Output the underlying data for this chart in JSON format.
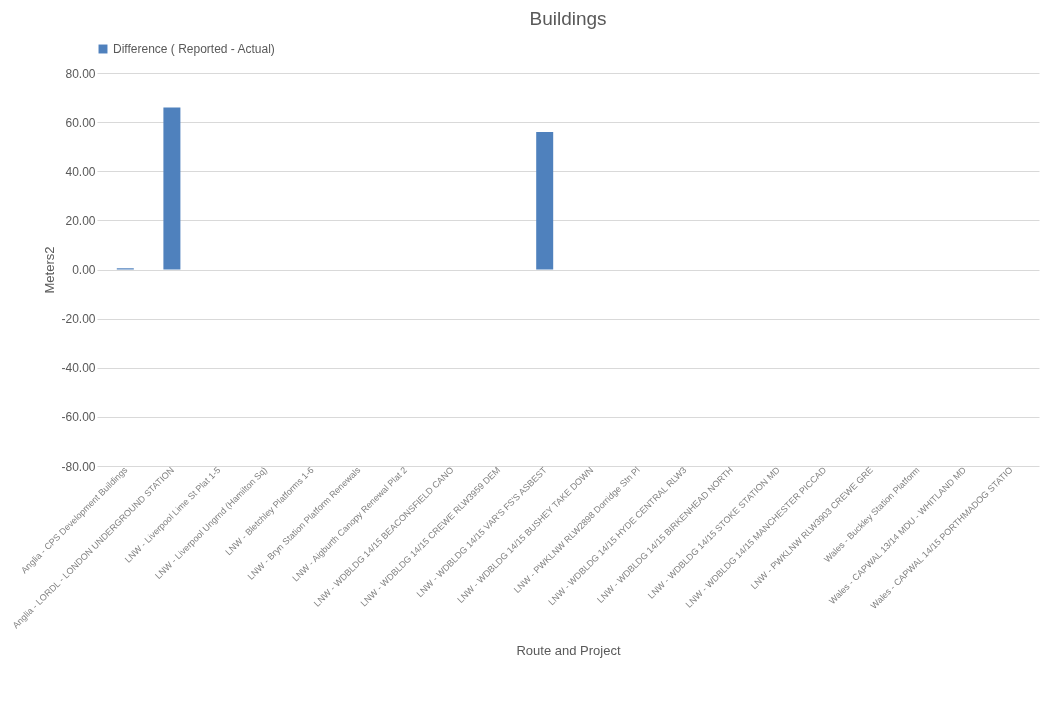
{
  "chart_data": {
    "type": "bar",
    "title": "Buildings",
    "xlabel": "Route and Project",
    "ylabel": "Meters2",
    "categories": [
      "Anglia - CPS Development Buildings",
      "Anglia - LORDL - LONDON UNDERGROUND STATION",
      "LNW - Liverpool Lime St Plat 1-5",
      "LNW - Liverpool Ungrnd (Hamilton Sq)",
      "LNW - Bletchley Platforms 1-6",
      "LNW - Bryn Station Platform Renewals",
      "LNW - Aigburth Canopy Renewal Plat 2",
      "LNW - WDBLDG 14/15 BEACONSFIELD CANO",
      "LNW - WDBLDG 14/15 CREWE RLW3959 DEM",
      "LNW - WDBLDG 14/15 VAR'S FS'S ASBEST",
      "LNW - WDBLDG 14/15 BUSHEY TAKE DOWN",
      "LNW - PWKLNW RLW2898 Dorridge Stn Pl",
      "LNW - WDBLDG 14/15 HYDE CENTRAL RLW3",
      "LNW - WDBLDG 14/15 BIRKENHEAD NORTH",
      "LNW - WDBLDG 14/15 STOKE STATION MD",
      "LNW - WDBLDG 14/15 MANCHESTER PICCAD",
      "LNW - PWKLNW RLW3903 CREWE GRE",
      "Wales - Buckley Station Platform",
      "Wales - CAPWAL 13/14 MDU - WHITLAND MD",
      "Wales - CAPWAL 14/15 PORTHMADOG STATIO"
    ],
    "series": [
      {
        "name": "Difference ( Reported - Actual)",
        "color": "#4f81bd",
        "values": [
          0.5,
          66,
          0,
          0,
          0,
          0,
          0,
          0,
          0,
          56,
          0,
          0,
          0,
          0,
          0,
          0,
          0,
          0,
          0,
          0
        ]
      }
    ],
    "ylim": [
      -80,
      80
    ],
    "yticks": [
      {
        "value": -80,
        "label": "-80.00"
      },
      {
        "value": -60,
        "label": "-60.00"
      },
      {
        "value": -40,
        "label": "-40.00"
      },
      {
        "value": -20,
        "label": "-20.00"
      },
      {
        "value": 0,
        "label": "0.00"
      },
      {
        "value": 20,
        "label": "20.00"
      },
      {
        "value": 40,
        "label": "40.00"
      },
      {
        "value": 60,
        "label": "60.00"
      },
      {
        "value": 80,
        "label": "80.00"
      }
    ],
    "grid": "y",
    "legend": "top"
  }
}
